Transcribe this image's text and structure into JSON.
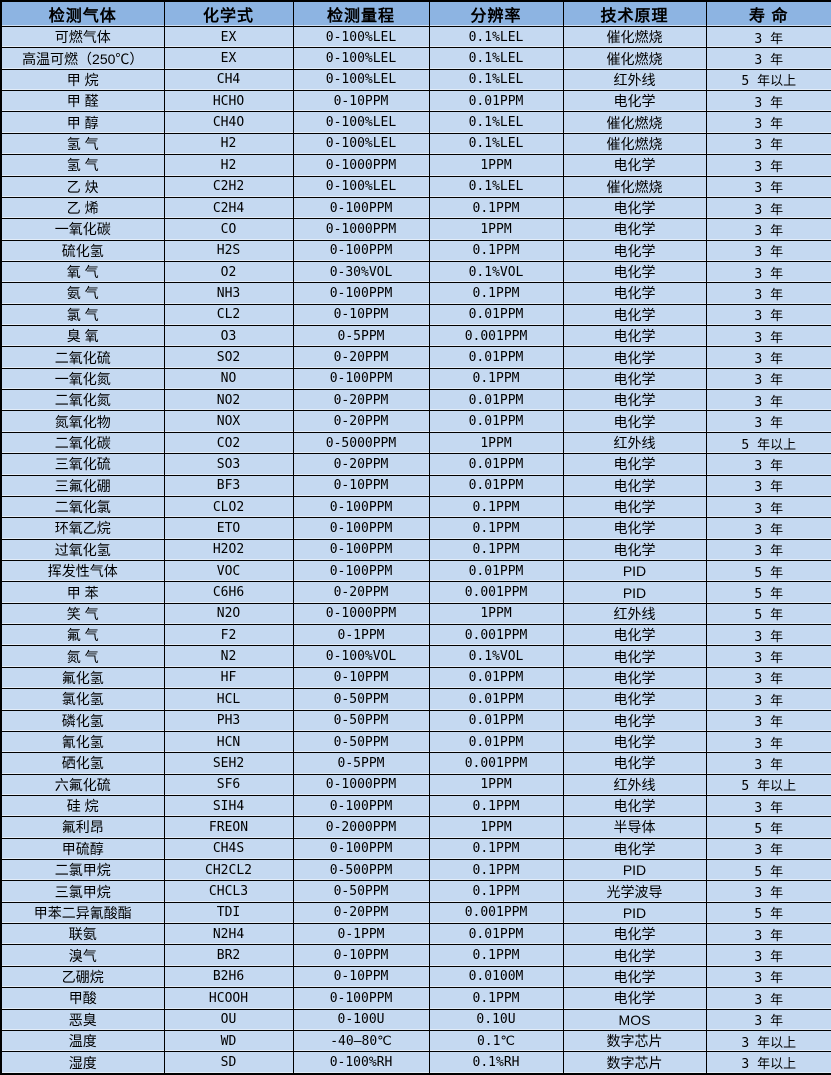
{
  "colors": {
    "header_bg": "#8db4e2",
    "row_bg": "#c5d9f1",
    "border": "#000000",
    "text": "#000000"
  },
  "table": {
    "columns": [
      "检测气体",
      "化学式",
      "检测量程",
      "分辨率",
      "技术原理",
      "寿 命"
    ],
    "rows": [
      [
        "可燃气体",
        "EX",
        "0-100%LEL",
        "0.1%LEL",
        "催化燃烧",
        "3 年"
      ],
      [
        "高温可燃（250℃）",
        "EX",
        "0-100%LEL",
        "0.1%LEL",
        "催化燃烧",
        "3 年"
      ],
      [
        "甲 烷",
        "CH4",
        "0-100%LEL",
        "0.1%LEL",
        "红外线",
        "5 年以上"
      ],
      [
        "甲 醛",
        "HCHO",
        "0-10PPM",
        "0.01PPM",
        "电化学",
        "3 年"
      ],
      [
        "甲 醇",
        "CH4O",
        "0-100%LEL",
        "0.1%LEL",
        "催化燃烧",
        "3 年"
      ],
      [
        "氢 气",
        "H2",
        "0-100%LEL",
        "0.1%LEL",
        "催化燃烧",
        "3 年"
      ],
      [
        "氢 气",
        "H2",
        "0-1000PPM",
        "1PPM",
        "电化学",
        "3 年"
      ],
      [
        "乙 炔",
        "C2H2",
        "0-100%LEL",
        "0.1%LEL",
        "催化燃烧",
        "3 年"
      ],
      [
        "乙 烯",
        "C2H4",
        "0-100PPM",
        "0.1PPM",
        "电化学",
        "3 年"
      ],
      [
        "一氧化碳",
        "CO",
        "0-1000PPM",
        "1PPM",
        "电化学",
        "3 年"
      ],
      [
        "硫化氢",
        "H2S",
        "0-100PPM",
        "0.1PPM",
        "电化学",
        "3 年"
      ],
      [
        "氧 气",
        "O2",
        "0-30%VOL",
        "0.1%VOL",
        "电化学",
        "3 年"
      ],
      [
        "氨 气",
        "NH3",
        "0-100PPM",
        "0.1PPM",
        "电化学",
        "3 年"
      ],
      [
        "氯 气",
        "CL2",
        "0-10PPM",
        "0.01PPM",
        "电化学",
        "3 年"
      ],
      [
        "臭 氧",
        "O3",
        "0-5PPM",
        "0.001PPM",
        "电化学",
        "3 年"
      ],
      [
        "二氧化硫",
        "SO2",
        "0-20PPM",
        "0.01PPM",
        "电化学",
        "3 年"
      ],
      [
        "一氧化氮",
        "NO",
        "0-100PPM",
        "0.1PPM",
        "电化学",
        "3 年"
      ],
      [
        "二氧化氮",
        "NO2",
        "0-20PPM",
        "0.01PPM",
        "电化学",
        "3 年"
      ],
      [
        "氮氧化物",
        "NOX",
        "0-20PPM",
        "0.01PPM",
        "电化学",
        "3 年"
      ],
      [
        "二氧化碳",
        "CO2",
        "0-5000PPM",
        "1PPM",
        "红外线",
        "5 年以上"
      ],
      [
        "三氧化硫",
        "SO3",
        "0-20PPM",
        "0.01PPM",
        "电化学",
        "3 年"
      ],
      [
        "三氟化硼",
        "BF3",
        "0-10PPM",
        "0.01PPM",
        "电化学",
        "3 年"
      ],
      [
        "二氧化氯",
        "CLO2",
        "0-100PPM",
        "0.1PPM",
        "电化学",
        "3 年"
      ],
      [
        "环氧乙烷",
        "ETO",
        "0-100PPM",
        "0.1PPM",
        "电化学",
        "3 年"
      ],
      [
        "过氧化氢",
        "H2O2",
        "0-100PPM",
        "0.1PPM",
        "电化学",
        "3 年"
      ],
      [
        "挥发性气体",
        "VOC",
        "0-100PPM",
        "0.01PPM",
        "PID",
        "5 年"
      ],
      [
        "甲 苯",
        "C6H6",
        "0-20PPM",
        "0.001PPM",
        "PID",
        "5 年"
      ],
      [
        "笑 气",
        "N2O",
        "0-1000PPM",
        "1PPM",
        "红外线",
        "5 年"
      ],
      [
        "氟 气",
        "F2",
        "0-1PPM",
        "0.001PPM",
        "电化学",
        "3 年"
      ],
      [
        "氮 气",
        "N2",
        "0-100%VOL",
        "0.1%VOL",
        "电化学",
        "3 年"
      ],
      [
        "氟化氢",
        "HF",
        "0-10PPM",
        "0.01PPM",
        "电化学",
        "3 年"
      ],
      [
        "氯化氢",
        "HCL",
        "0-50PPM",
        "0.01PPM",
        "电化学",
        "3 年"
      ],
      [
        "磷化氢",
        "PH3",
        "0-50PPM",
        "0.01PPM",
        "电化学",
        "3 年"
      ],
      [
        "氰化氢",
        "HCN",
        "0-50PPM",
        "0.01PPM",
        "电化学",
        "3 年"
      ],
      [
        "硒化氢",
        "SEH2",
        "0-5PPM",
        "0.001PPM",
        "电化学",
        "3 年"
      ],
      [
        "六氟化硫",
        "SF6",
        "0-1000PPM",
        "1PPM",
        "红外线",
        "5 年以上"
      ],
      [
        "硅 烷",
        "SIH4",
        "0-100PPM",
        "0.1PPM",
        "电化学",
        "3 年"
      ],
      [
        "氟利昂",
        "FREON",
        "0-2000PPM",
        "1PPM",
        "半导体",
        "5 年"
      ],
      [
        "甲硫醇",
        "CH4S",
        "0-100PPM",
        "0.1PPM",
        "电化学",
        "3 年"
      ],
      [
        "二氯甲烷",
        "CH2CL2",
        "0-500PPM",
        "0.1PPM",
        "PID",
        "5 年"
      ],
      [
        "三氯甲烷",
        "CHCL3",
        "0-50PPM",
        "0.1PPM",
        "光学波导",
        "3 年"
      ],
      [
        "甲苯二异氰酸酯",
        "TDI",
        "0-20PPM",
        "0.001PPM",
        "PID",
        "5 年"
      ],
      [
        "联氨",
        "N2H4",
        "0-1PPM",
        "0.01PPM",
        "电化学",
        "3 年"
      ],
      [
        "溴气",
        "BR2",
        "0-10PPM",
        "0.1PPM",
        "电化学",
        "3 年"
      ],
      [
        "乙硼烷",
        "B2H6",
        "0-10PPM",
        "0.0100M",
        "电化学",
        "3 年"
      ],
      [
        "甲酸",
        "HCOOH",
        "0-100PPM",
        "0.1PPM",
        "电化学",
        "3 年"
      ],
      [
        "恶臭",
        "OU",
        "0-100U",
        "0.10U",
        "MOS",
        "3 年"
      ],
      [
        "温度",
        "WD",
        "-40—80℃",
        "0.1℃",
        "数字芯片",
        "3 年以上"
      ],
      [
        "湿度",
        "SD",
        "0-100%RH",
        "0.1%RH",
        "数字芯片",
        "3 年以上"
      ]
    ]
  }
}
